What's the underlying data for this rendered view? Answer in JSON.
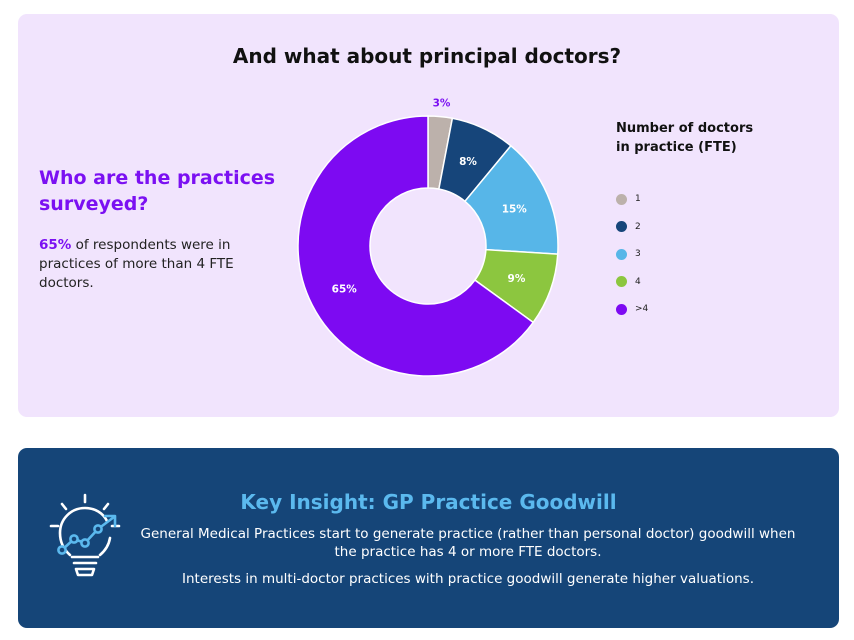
{
  "chart_data": {
    "type": "pie",
    "title": "And what about principal doctors?",
    "legend_title": "Number of doctors in practice (FTE)",
    "legend_position": "right",
    "slices": [
      {
        "label": "1",
        "value": 3,
        "display": "3%",
        "color": "#bcb1ab"
      },
      {
        "label": "2",
        "value": 8,
        "display": "8%",
        "color": "#16457a"
      },
      {
        "label": "3",
        "value": 15,
        "display": "15%",
        "color": "#57b6e8"
      },
      {
        "label": "4",
        "value": 9,
        "display": "9%",
        "color": "#8cc63f"
      },
      {
        "label": ">4",
        "value": 65,
        "display": "65%",
        "color": "#7d0af2"
      }
    ]
  },
  "intro": {
    "heading": "Who are the practices surveyed?",
    "highlight": "65%",
    "body": " of respondents were in practices of more than 4 FTE doctors."
  },
  "insight": {
    "title": "Key Insight: GP Practice Goodwill",
    "paragraph1": "General Medical Practices start to generate practice (rather than personal doctor) goodwill when the practice has 4 or more FTE doctors.",
    "paragraph2": "Interests in multi-doctor practices with practice goodwill generate higher valuations.",
    "icon": "lightbulb-growth-icon"
  },
  "colors": {
    "accent_purple": "#7b10f2",
    "panel_lilac": "#f1e4fd",
    "panel_navy": "#154578",
    "insight_title_blue": "#5bb9ee"
  }
}
